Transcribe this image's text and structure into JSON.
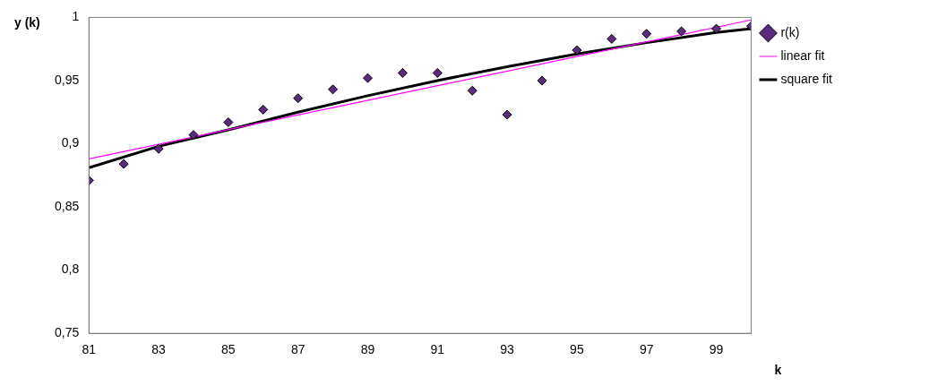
{
  "chart_data": {
    "type": "scatter",
    "xlabel": "k",
    "ylabel": "y (k)",
    "xlim": [
      81,
      100
    ],
    "xticks": [
      81,
      83,
      85,
      87,
      89,
      91,
      93,
      95,
      97,
      99
    ],
    "ylim": [
      0.75,
      1
    ],
    "yticks": [
      {
        "value": 0.75,
        "label": "0,75"
      },
      {
        "value": 0.8,
        "label": "0,8"
      },
      {
        "value": 0.85,
        "label": "0,85"
      },
      {
        "value": 0.9,
        "label": "0,9"
      },
      {
        "value": 0.95,
        "label": "0,95"
      },
      1
    ],
    "grid": false,
    "legend": "right",
    "series": [
      {
        "name": "r(k)",
        "marker": "diamond",
        "color": "#5c2b7e",
        "x": [
          81,
          82,
          83,
          84,
          85,
          86,
          87,
          88,
          89,
          90,
          91,
          92,
          93,
          94,
          95,
          96,
          97,
          98,
          99,
          100
        ],
        "values": [
          0.871,
          0.884,
          0.896,
          0.907,
          0.917,
          0.927,
          0.936,
          0.943,
          0.952,
          0.956,
          0.956,
          0.942,
          0.923,
          0.95,
          0.974,
          0.983,
          0.987,
          0.989,
          0.991,
          0.993
        ]
      },
      {
        "name": "linear fit",
        "type": "line",
        "marker": "none",
        "color": "#ff00ff",
        "x": [
          81,
          100
        ],
        "values": [
          0.888,
          0.998
        ]
      },
      {
        "name": "square fit",
        "type": "line",
        "marker": "none",
        "color": "#000000",
        "x": [
          81,
          83,
          85,
          87,
          89,
          91,
          93,
          95,
          97,
          99,
          100
        ],
        "values": [
          0.881,
          0.898,
          0.911,
          0.925,
          0.938,
          0.95,
          0.961,
          0.971,
          0.98,
          0.988,
          0.991
        ]
      }
    ]
  }
}
